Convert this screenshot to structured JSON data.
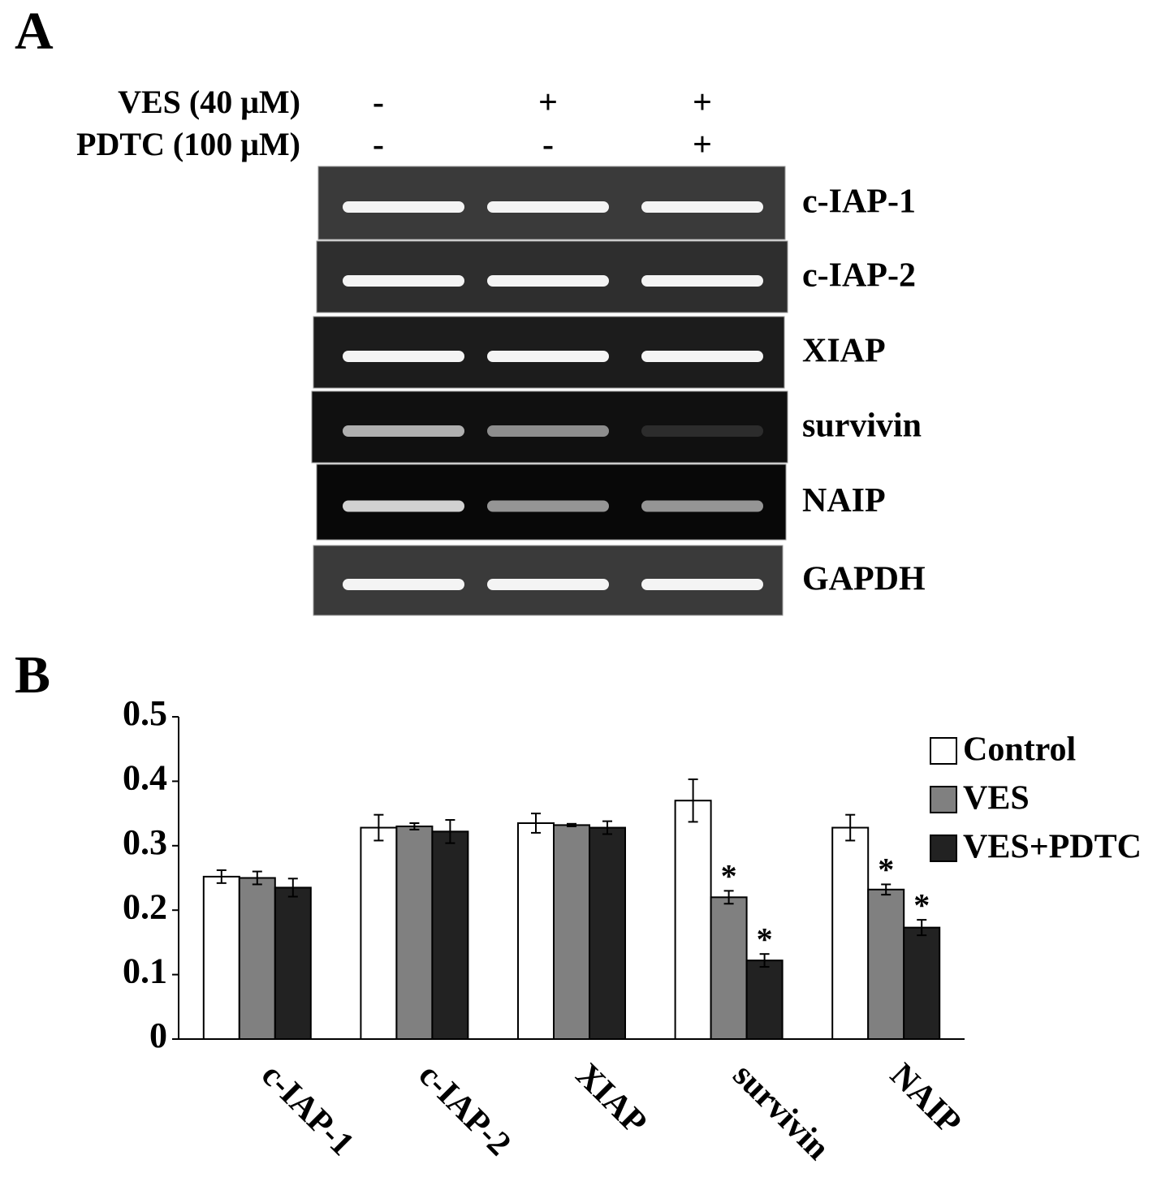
{
  "panel_a": {
    "label": "A",
    "treatments": [
      {
        "name": "VES (40 μM)",
        "signs": [
          "-",
          "+",
          "+"
        ]
      },
      {
        "name": "PDTC (100 μM)",
        "signs": [
          "-",
          "-",
          "+"
        ]
      }
    ],
    "gel_labels": [
      "c-IAP-1",
      "c-IAP-2",
      "XIAP",
      "survivin",
      "NAIP",
      "GAPDH"
    ]
  },
  "chart_data": {
    "type": "bar",
    "panel_label": "B",
    "categories": [
      "c-IAP-1",
      "c-IAP-2",
      "XIAP",
      "survivin",
      "NAIP"
    ],
    "series": [
      {
        "name": "Control",
        "color": "#ffffff",
        "values": [
          0.252,
          0.328,
          0.335,
          0.37,
          0.328
        ],
        "errors": [
          0.01,
          0.02,
          0.015,
          0.033,
          0.02
        ],
        "significance": [
          null,
          null,
          null,
          null,
          null
        ]
      },
      {
        "name": "VES",
        "color": "#808080",
        "values": [
          0.25,
          0.33,
          0.332,
          0.22,
          0.232
        ],
        "errors": [
          0.01,
          0.005,
          0.002,
          0.01,
          0.008
        ],
        "significance": [
          null,
          null,
          null,
          "*",
          "*"
        ]
      },
      {
        "name": "VES+PDTC",
        "color": "#222222",
        "values": [
          0.235,
          0.322,
          0.328,
          0.122,
          0.173
        ],
        "errors": [
          0.014,
          0.018,
          0.01,
          0.01,
          0.012
        ],
        "significance": [
          null,
          null,
          null,
          "*",
          "*"
        ]
      }
    ],
    "ylim": [
      0,
      0.5
    ],
    "yticks": [
      0,
      0.1,
      0.2,
      0.3,
      0.4,
      0.5
    ],
    "grid": false,
    "legend": "upper right"
  }
}
